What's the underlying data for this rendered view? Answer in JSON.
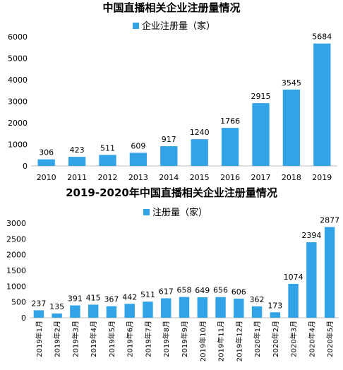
{
  "colors": {
    "bar": "#33a3e8",
    "axis": "#bfbfbf",
    "grid": "#d9d9d9"
  },
  "chart_data": [
    {
      "type": "bar",
      "title": "中国直播相关企业注册量情况",
      "legend": "企业注册量（家）",
      "legend_position": "top",
      "categories": [
        "2010",
        "2011",
        "2012",
        "2013",
        "2014",
        "2015",
        "2016",
        "2017",
        "2018",
        "2019"
      ],
      "values": [
        306,
        423,
        511,
        609,
        917,
        1240,
        1766,
        2915,
        3545,
        5684
      ],
      "yticks": [
        "0",
        "1000",
        "2000",
        "3000",
        "4000",
        "5000",
        "6000"
      ],
      "ylim": [
        0,
        6000
      ],
      "grid": false
    },
    {
      "type": "bar",
      "title": "2019-2020年中国直播相关企业注册量情况",
      "legend": "注册量（家）",
      "legend_position": "top",
      "categories": [
        "2019年1月",
        "2019年2月",
        "2019年3月",
        "2019年4月",
        "2019年5月",
        "2019年6月",
        "2019年7月",
        "2019年8月",
        "2019年9月",
        "2019年10月",
        "2019年11月",
        "2019年12月",
        "2020年1月",
        "2020年2月",
        "2020年3月",
        "2020年4月",
        "2020年5月"
      ],
      "values": [
        237,
        135,
        391,
        415,
        367,
        442,
        511,
        617,
        658,
        649,
        656,
        606,
        362,
        173,
        1074,
        2394,
        2877
      ],
      "yticks": [
        "0",
        "500",
        "1000",
        "1500",
        "2000",
        "2500",
        "3000"
      ],
      "ylim": [
        0,
        3000
      ],
      "grid": false
    }
  ]
}
